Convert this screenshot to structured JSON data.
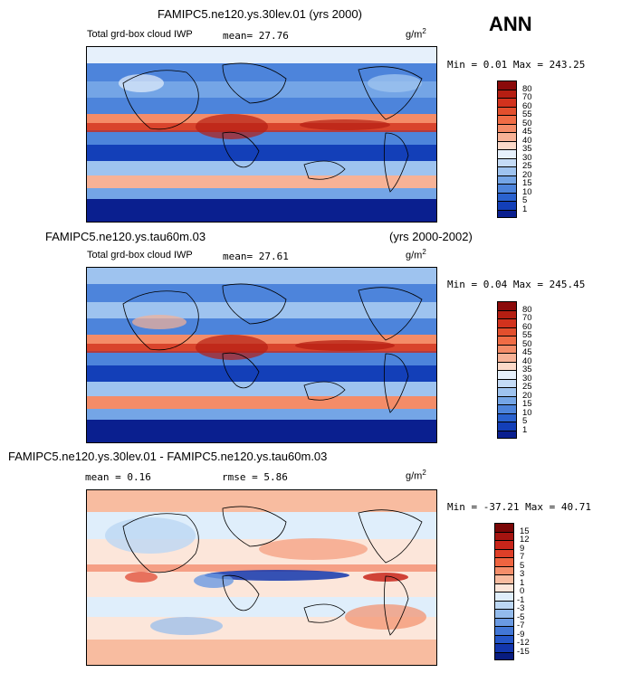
{
  "season": "ANN",
  "panels": [
    {
      "title": "FAMIPC5.ne120.ys.30lev.01  (yrs 2000)",
      "subtitle": "Total grd-box cloud IWP",
      "stat": "mean=   27.76",
      "units_base": "g/m",
      "units_exp": "2",
      "minmax": "Min =    0.01  Max =  243.25",
      "colorbar_labels": [
        "80",
        "70",
        "60",
        "55",
        "50",
        "45",
        "40",
        "35",
        "30",
        "25",
        "20",
        "15",
        "10",
        "5",
        "1"
      ],
      "colorbar_colors": [
        "#8b0a0a",
        "#b51e12",
        "#d2321d",
        "#e34f2d",
        "#f06c45",
        "#f48c68",
        "#f7b296",
        "#fbd9c8",
        "#e6f0fb",
        "#c4dbf6",
        "#9ec3ef",
        "#74a5e6",
        "#4d84db",
        "#2a62cf",
        "#133fb8",
        "#0a1f8f"
      ]
    },
    {
      "title_left": "FAMIPC5.ne120.ys.tau60m.03",
      "title_right": "(yrs 2000-2002)",
      "subtitle": "Total grd-box cloud IWP",
      "stat": "mean=   27.61",
      "units_base": "g/m",
      "units_exp": "2",
      "minmax": "Min =    0.04  Max =  245.45",
      "colorbar_labels": [
        "80",
        "70",
        "60",
        "55",
        "50",
        "45",
        "40",
        "35",
        "30",
        "25",
        "20",
        "15",
        "10",
        "5",
        "1"
      ],
      "colorbar_colors": [
        "#8b0a0a",
        "#b51e12",
        "#d2321d",
        "#e34f2d",
        "#f06c45",
        "#f48c68",
        "#f7b296",
        "#fbd9c8",
        "#e6f0fb",
        "#c4dbf6",
        "#9ec3ef",
        "#74a5e6",
        "#4d84db",
        "#2a62cf",
        "#133fb8",
        "#0a1f8f"
      ]
    },
    {
      "title": "FAMIPC5.ne120.ys.30lev.01 - FAMIPC5.ne120.ys.tau60m.03",
      "stat": "mean =    0.16",
      "rmse": "rmse =    5.86",
      "units_base": "g/m",
      "units_exp": "2",
      "minmax": "Min = -37.21  Max =   40.71",
      "colorbar_labels": [
        "15",
        "12",
        "9",
        "7",
        "5",
        "3",
        "1",
        "0",
        "-1",
        "-3",
        "-5",
        "-7",
        "-9",
        "-12",
        "-15"
      ],
      "colorbar_colors": [
        "#7a0606",
        "#a51410",
        "#c8251a",
        "#de3f28",
        "#ee6440",
        "#f48e6a",
        "#f8bca0",
        "#fce6da",
        "#dfeefb",
        "#bcd7f4",
        "#93bbec",
        "#6a9ae2",
        "#4277d6",
        "#2456c8",
        "#1236ad",
        "#081c80"
      ]
    }
  ],
  "chart_data": [
    {
      "type": "heatmap",
      "title": "FAMIPC5.ne120.ys.30lev.01  (yrs 2000)",
      "subtitle": "Total grd-box cloud IWP",
      "units": "g/m2",
      "mean": 27.76,
      "min": 0.01,
      "max": 243.25,
      "contour_levels": [
        1,
        5,
        10,
        15,
        20,
        25,
        30,
        35,
        40,
        45,
        50,
        55,
        60,
        70,
        80
      ]
    },
    {
      "type": "heatmap",
      "title": "FAMIPC5.ne120.ys.tau60m.03",
      "years": "(yrs 2000-2002)",
      "subtitle": "Total grd-box cloud IWP",
      "units": "g/m2",
      "mean": 27.61,
      "min": 0.04,
      "max": 245.45,
      "contour_levels": [
        1,
        5,
        10,
        15,
        20,
        25,
        30,
        35,
        40,
        45,
        50,
        55,
        60,
        70,
        80
      ]
    },
    {
      "type": "heatmap",
      "title": "FAMIPC5.ne120.ys.30lev.01 - FAMIPC5.ne120.ys.tau60m.03",
      "units": "g/m2",
      "mean": 0.16,
      "rmse": 5.86,
      "min": -37.21,
      "max": 40.71,
      "contour_levels": [
        -15,
        -12,
        -9,
        -7,
        -5,
        -3,
        -1,
        0,
        1,
        3,
        5,
        7,
        9,
        12,
        15
      ]
    }
  ]
}
